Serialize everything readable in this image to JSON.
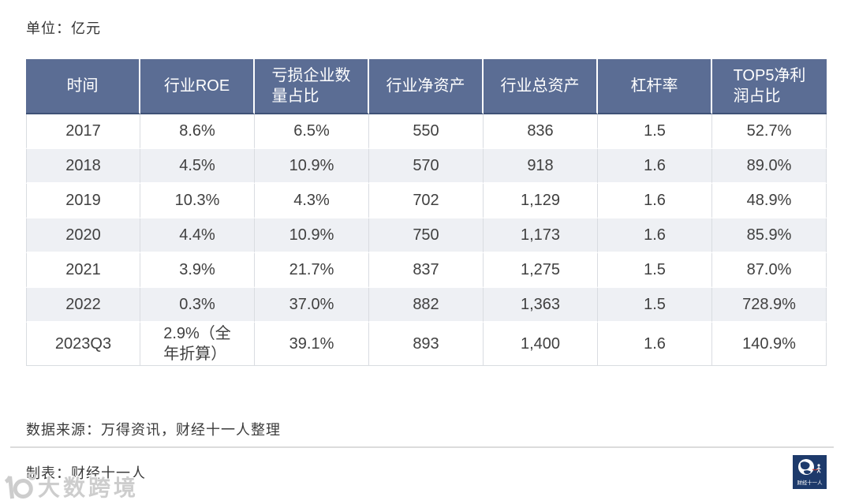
{
  "unit_label": "单位：亿元",
  "table": {
    "header_display": [
      "时间",
      "行业ROE",
      "亏损企业数\n量占比",
      "行业净资产",
      "行业总资产",
      "杠杆率",
      "TOP5净利\n润占比"
    ],
    "rows_display": [
      [
        "2017",
        "8.6%",
        "6.5%",
        "550",
        "836",
        "1.5",
        "52.7%"
      ],
      [
        "2018",
        "4.5%",
        "10.9%",
        "570",
        "918",
        "1.6",
        "89.0%"
      ],
      [
        "2019",
        "10.3%",
        "4.3%",
        "702",
        "1,129",
        "1.6",
        "48.9%"
      ],
      [
        "2020",
        "4.4%",
        "10.9%",
        "750",
        "1,173",
        "1.6",
        "85.9%"
      ],
      [
        "2021",
        "3.9%",
        "21.7%",
        "837",
        "1,275",
        "1.5",
        "87.0%"
      ],
      [
        "2022",
        "0.3%",
        "37.0%",
        "882",
        "1,363",
        "1.5",
        "728.9%"
      ],
      [
        "2023Q3",
        "2.9%（全\n年折算）",
        "39.1%",
        "893",
        "1,400",
        "1.6",
        "140.9%"
      ]
    ]
  },
  "chart_data": {
    "type": "table",
    "title": "",
    "unit": "亿元",
    "columns": [
      "时间",
      "行业ROE",
      "亏损企业数量占比",
      "行业净资产",
      "行业总资产",
      "杠杆率",
      "TOP5净利润占比"
    ],
    "rows": [
      [
        "2017",
        "8.6%",
        "6.5%",
        550,
        836,
        1.5,
        "52.7%"
      ],
      [
        "2018",
        "4.5%",
        "10.9%",
        570,
        918,
        1.6,
        "89.0%"
      ],
      [
        "2019",
        "10.3%",
        "4.3%",
        702,
        1129,
        1.6,
        "48.9%"
      ],
      [
        "2020",
        "4.4%",
        "10.9%",
        750,
        1173,
        1.6,
        "85.9%"
      ],
      [
        "2021",
        "3.9%",
        "21.7%",
        837,
        1275,
        1.5,
        "87.0%"
      ],
      [
        "2022",
        "0.3%",
        "37.0%",
        882,
        1363,
        1.5,
        "728.9%"
      ],
      [
        "2023Q3",
        "2.9%（全年折算）",
        "39.1%",
        893,
        1400,
        1.6,
        "140.9%"
      ]
    ]
  },
  "footer": {
    "source": "数据来源：万得资讯，财经十一人整理",
    "credit": "制表：财经十一人",
    "logo_text": "财经十一人"
  },
  "watermark": {
    "text": "大数跨境"
  },
  "colors": {
    "header_bg": "#5b6d94",
    "header_border_bottom": "#3f5277",
    "header_text": "#ffffff",
    "row_alt_bg": "#eef0f4",
    "cell_border": "#d9dce1",
    "body_text": "#404040",
    "logo_bg": "#1d3a6b",
    "logo_accent": "#c0392b",
    "watermark_gray": "#cdcdcd"
  }
}
